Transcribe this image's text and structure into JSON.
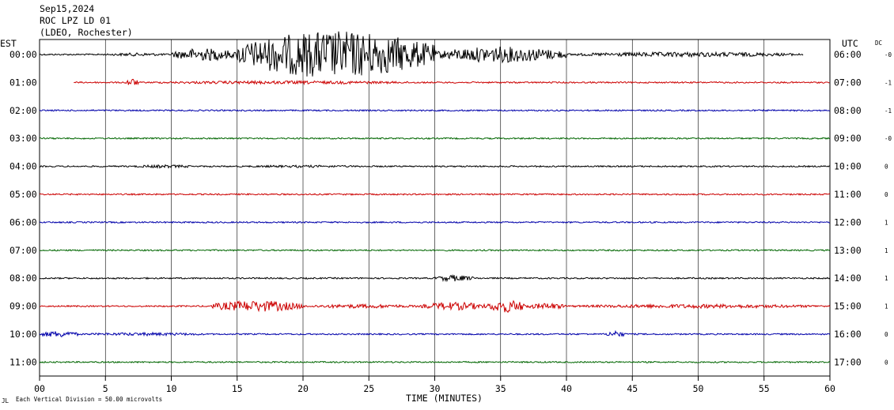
{
  "header": {
    "date": "Sep15,2024",
    "station": "ROC LPZ LD 01",
    "network": "(LDEO, Rochester)"
  },
  "axis": {
    "left_label": "EST",
    "right_label": "UTC",
    "dc_label": "DC",
    "xlabel": "TIME (MINUTES)",
    "ticks": [
      "00",
      "5",
      "10",
      "15",
      "20",
      "25",
      "30",
      "35",
      "40",
      "45",
      "50",
      "55",
      "60"
    ]
  },
  "footer": {
    "marker": "JL",
    "scale_note": "Each Vertical Division =   50.00 microvolts"
  },
  "colors": {
    "black": "#000000",
    "red": "#cc0000",
    "blue": "#0000aa",
    "green": "#006600",
    "grid": "#000000"
  },
  "chart_data": {
    "type": "line",
    "xlabel": "TIME (MINUTES)",
    "xlim": [
      0,
      60
    ],
    "grid": true,
    "rows": [
      {
        "est": "00:00",
        "utc": "06:00",
        "dc": "-0",
        "color": "black",
        "start_min": 0,
        "end_min": 58,
        "bursts": [
          [
            5,
            10,
            2
          ],
          [
            10,
            15,
            8
          ],
          [
            15,
            30,
            30
          ],
          [
            30,
            40,
            10
          ],
          [
            40,
            58,
            3
          ]
        ]
      },
      {
        "est": "01:00",
        "utc": "07:00",
        "dc": "-1",
        "color": "red",
        "start_min": 2.6,
        "end_min": 60,
        "bursts": [
          [
            6.5,
            7.5,
            5
          ],
          [
            7.5,
            30,
            2
          ]
        ]
      },
      {
        "est": "02:00",
        "utc": "08:00",
        "dc": "-1",
        "color": "blue",
        "start_min": 0,
        "end_min": 60,
        "bursts": []
      },
      {
        "est": "03:00",
        "utc": "09:00",
        "dc": "-0",
        "color": "green",
        "start_min": 0,
        "end_min": 60,
        "bursts": []
      },
      {
        "est": "04:00",
        "utc": "10:00",
        "dc": "0",
        "color": "black",
        "start_min": 0,
        "end_min": 60,
        "bursts": [
          [
            7,
            12,
            2
          ],
          [
            14,
            26,
            1.5
          ]
        ]
      },
      {
        "est": "05:00",
        "utc": "11:00",
        "dc": "0",
        "color": "red",
        "start_min": 0,
        "end_min": 60,
        "bursts": []
      },
      {
        "est": "06:00",
        "utc": "12:00",
        "dc": "1",
        "color": "blue",
        "start_min": 0,
        "end_min": 60,
        "bursts": []
      },
      {
        "est": "07:00",
        "utc": "13:00",
        "dc": "1",
        "color": "green",
        "start_min": 0,
        "end_min": 60,
        "bursts": []
      },
      {
        "est": "08:00",
        "utc": "14:00",
        "dc": "1",
        "color": "black",
        "start_min": 0,
        "end_min": 60,
        "bursts": [
          [
            30,
            33,
            4
          ]
        ]
      },
      {
        "est": "09:00",
        "utc": "15:00",
        "dc": "1",
        "color": "red",
        "start_min": 0,
        "end_min": 60,
        "bursts": [
          [
            13,
            20,
            7
          ],
          [
            20,
            29,
            2.5
          ],
          [
            29,
            34,
            5
          ],
          [
            34,
            37,
            8
          ],
          [
            37,
            40,
            4
          ],
          [
            40,
            60,
            2.5
          ]
        ]
      },
      {
        "est": "10:00",
        "utc": "16:00",
        "dc": "0",
        "color": "blue",
        "start_min": 0,
        "end_min": 60,
        "bursts": [
          [
            0,
            3,
            4
          ],
          [
            3,
            13,
            2
          ],
          [
            43,
            44.5,
            4
          ]
        ]
      },
      {
        "est": "11:00",
        "utc": "17:00",
        "dc": "0",
        "color": "green",
        "start_min": 0,
        "end_min": 60,
        "bursts": []
      }
    ]
  }
}
